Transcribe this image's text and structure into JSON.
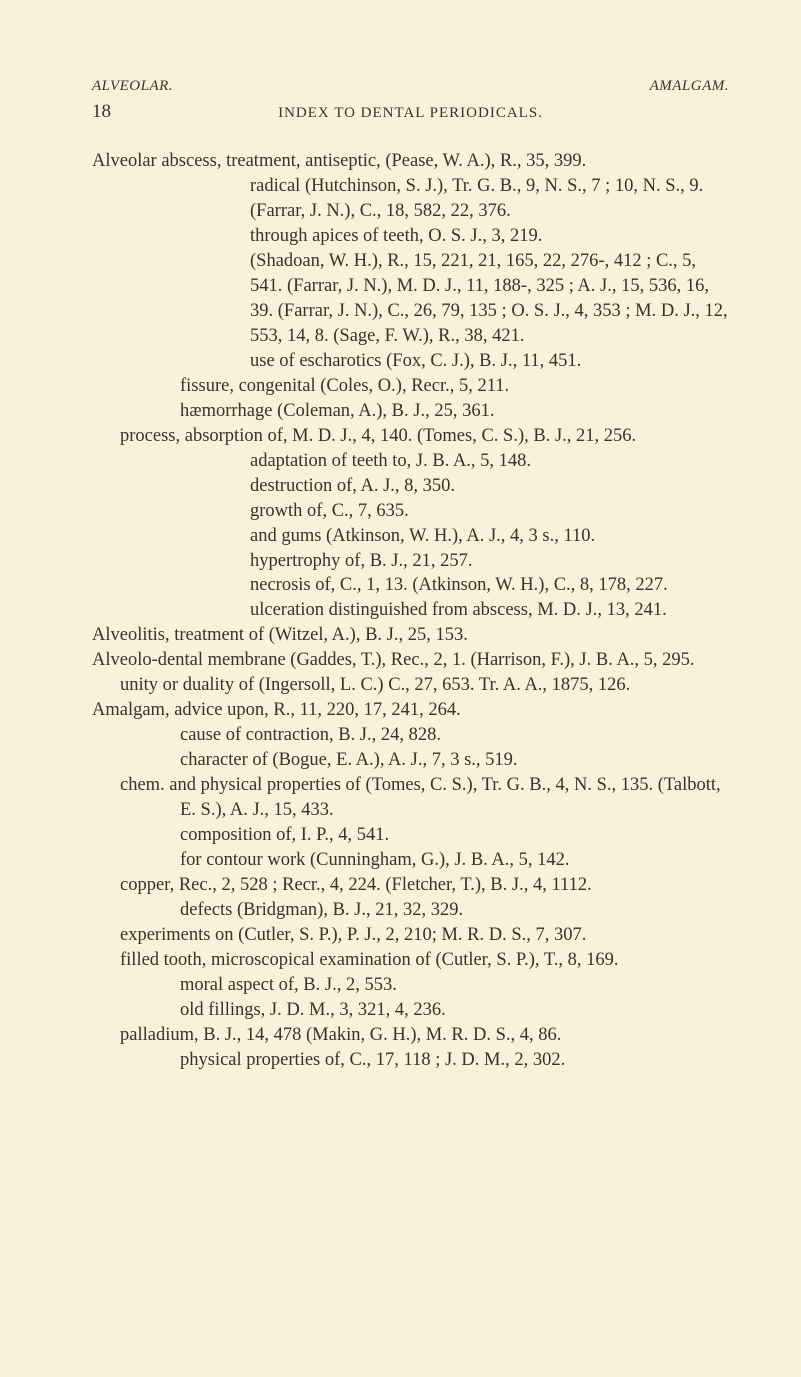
{
  "runningHeadLeft": "ALVEOLAR.",
  "runningHeadRight": "AMALGAM.",
  "pageNumber": "18",
  "chapterTitle": "INDEX TO DENTAL PERIODICALS.",
  "lines": [
    {
      "cls": "lvl0",
      "text": "Alveolar abscess, treatment, antiseptic, (Pease, W. A.), R., 35, 399."
    },
    {
      "cls": "lvl2 noindent",
      "text": "radical (Hutchinson, S. J.), Tr. G. B., 9, N. S., 7 ; 10, N. S., 9. (Farrar, J. N.), C., 18, 582, 22, 376."
    },
    {
      "cls": "lvl2 noindent",
      "text": "through apices of teeth, O. S. J., 3, 219."
    },
    {
      "cls": "lvl2 noindent",
      "text": "(Shadoan, W. H.), R., 15, 221, 21, 165, 22, 276-, 412 ; C., 5, 541. (Farrar, J. N.), M. D. J., 11, 188-, 325 ; A. J., 15, 536, 16, 39. (Farrar, J. N.), C., 26, 79, 135 ; O. S. J., 4, 353 ; M. D. J., 12, 553, 14, 8. (Sage, F. W.), R., 38, 421."
    },
    {
      "cls": "lvl2 noindent",
      "text": "use of escharotics (Fox, C. J.), B. J., 11, 451."
    },
    {
      "cls": "lvl1b noindent",
      "text": "fissure, congenital (Coles, O.), Recr., 5, 211."
    },
    {
      "cls": "lvl1b noindent",
      "text": "hæmorrhage (Coleman, A.), B. J., 25, 361."
    },
    {
      "cls": "lvl1b",
      "text": "process, absorption of, M. D. J., 4, 140. (Tomes, C. S.), B. J., 21, 256."
    },
    {
      "cls": "lvl2 noindent",
      "text": "adaptation of teeth to, J. B. A., 5, 148."
    },
    {
      "cls": "lvl2 noindent",
      "text": "destruction of, A. J., 8, 350."
    },
    {
      "cls": "lvl2 noindent",
      "text": "growth of, C., 7, 635."
    },
    {
      "cls": "lvl2 noindent",
      "text": "and gums (Atkinson, W. H.), A. J., 4, 3 s., 110."
    },
    {
      "cls": "lvl2 noindent",
      "text": "hypertrophy of, B. J., 21, 257."
    },
    {
      "cls": "lvl2 noindent",
      "text": "necrosis of, C., 1, 13. (Atkinson, W. H.), C., 8, 178, 227."
    },
    {
      "cls": "lvl2 noindent",
      "text": "ulceration distinguished from abscess, M. D. J., 13, 241."
    },
    {
      "cls": "lvl0",
      "text": "Alveolitis, treatment of (Witzel, A.), B. J., 25, 153."
    },
    {
      "cls": "lvl0",
      "text": "Alveolo-dental membrane (Gaddes, T.), Rec., 2, 1. (Harrison, F.), J. B. A., 5, 295."
    },
    {
      "cls": "lvl1b",
      "text": "unity or duality of (Ingersoll, L. C.) C., 27, 653. Tr. A. A., 1875, 126."
    },
    {
      "cls": "lvl0",
      "text": "Amalgam, advice upon, R., 11, 220, 17, 241, 264."
    },
    {
      "cls": "lvl1b noindent",
      "text": "cause of contraction, B. J., 24, 828."
    },
    {
      "cls": "lvl1b noindent",
      "text": "character of (Bogue, E. A.), A. J., 7, 3 s., 519."
    },
    {
      "cls": "lvl1b",
      "text": "chem. and physical properties of (Tomes, C. S.), Tr. G. B., 4, N. S., 135. (Talbott, E. S.), A. J., 15, 433."
    },
    {
      "cls": "lvl1b noindent",
      "text": "composition of, I. P., 4, 541."
    },
    {
      "cls": "lvl1b noindent",
      "text": "for contour work (Cunningham, G.), J. B. A., 5, 142."
    },
    {
      "cls": "lvl1b",
      "text": "copper, Rec., 2, 528 ; Recr., 4, 224. (Fletcher, T.), B. J., 4, 1112."
    },
    {
      "cls": "lvl1b noindent",
      "text": "defects (Bridgman), B. J., 21, 32, 329."
    },
    {
      "cls": "lvl1b",
      "text": "experiments on (Cutler, S. P.), P. J., 2, 210; M. R. D. S., 7, 307."
    },
    {
      "cls": "lvl1b",
      "text": "filled tooth, microscopical examination of (Cutler, S. P.), T., 8, 169."
    },
    {
      "cls": "lvl1b noindent",
      "text": "moral aspect of, B. J., 2, 553."
    },
    {
      "cls": "lvl1b noindent",
      "text": "old fillings, J. D. M., 3, 321, 4, 236."
    },
    {
      "cls": "lvl1b",
      "text": "palladium, B. J., 14, 478 (Makin, G. H.), M. R. D. S., 4, 86."
    },
    {
      "cls": "lvl1b noindent",
      "text": "physical properties of, C., 17, 118 ; J. D. M., 2, 302."
    }
  ]
}
